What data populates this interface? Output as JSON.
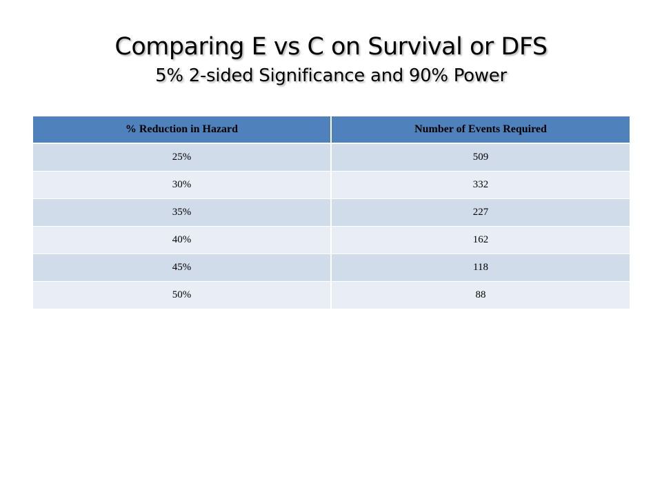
{
  "slide": {
    "title": "Comparing E vs C on Survival or DFS",
    "subtitle": "5% 2-sided Significance and 90% Power"
  },
  "table": {
    "headers": [
      "% Reduction in Hazard",
      "Number of Events Required"
    ],
    "rows": [
      [
        "25%",
        "509"
      ],
      [
        "30%",
        "332"
      ],
      [
        "35%",
        "227"
      ],
      [
        "40%",
        "162"
      ],
      [
        "45%",
        "118"
      ],
      [
        "50%",
        "88"
      ]
    ]
  },
  "colors": {
    "header_fill": "#4f81bd",
    "row_band_dark": "#d0dcea",
    "row_band_light": "#e9eef6"
  }
}
